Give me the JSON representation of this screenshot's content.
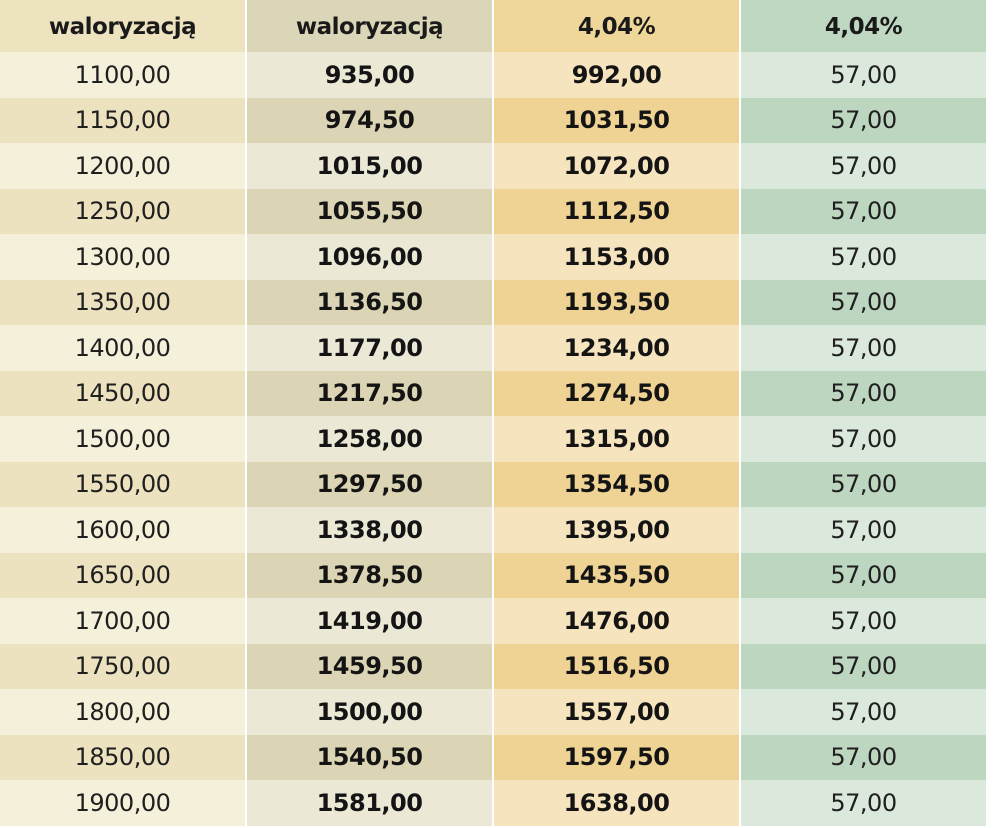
{
  "headers": {
    "col1": {
      "partial_top": "",
      "line": "waloryzacją"
    },
    "col2": {
      "partial_top": "",
      "line": "waloryzacją"
    },
    "col3": {
      "partial_top": "",
      "line": "4,04%"
    },
    "col4": {
      "partial_top": "",
      "line": "4,04%"
    }
  },
  "rows": [
    [
      "1100,00",
      "935,00",
      "992,00",
      "57,00"
    ],
    [
      "1150,00",
      "974,50",
      "1031,50",
      "57,00"
    ],
    [
      "1200,00",
      "1015,00",
      "1072,00",
      "57,00"
    ],
    [
      "1250,00",
      "1055,50",
      "1112,50",
      "57,00"
    ],
    [
      "1300,00",
      "1096,00",
      "1153,00",
      "57,00"
    ],
    [
      "1350,00",
      "1136,50",
      "1193,50",
      "57,00"
    ],
    [
      "1400,00",
      "1177,00",
      "1234,00",
      "57,00"
    ],
    [
      "1450,00",
      "1217,50",
      "1274,50",
      "57,00"
    ],
    [
      "1500,00",
      "1258,00",
      "1315,00",
      "57,00"
    ],
    [
      "1550,00",
      "1297,50",
      "1354,50",
      "57,00"
    ],
    [
      "1600,00",
      "1338,00",
      "1395,00",
      "57,00"
    ],
    [
      "1650,00",
      "1378,50",
      "1435,50",
      "57,00"
    ],
    [
      "1700,00",
      "1419,00",
      "1476,00",
      "57,00"
    ],
    [
      "1750,00",
      "1459,50",
      "1516,50",
      "57,00"
    ],
    [
      "1800,00",
      "1500,00",
      "1557,00",
      "57,00"
    ],
    [
      "1850,00",
      "1540,50",
      "1597,50",
      "57,00"
    ],
    [
      "1900,00",
      "1581,00",
      "1638,00",
      "57,00"
    ]
  ]
}
